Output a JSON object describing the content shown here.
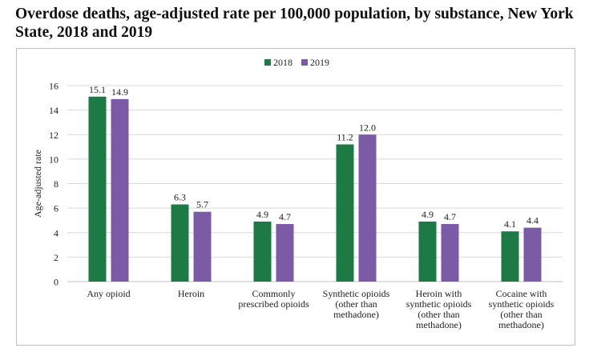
{
  "title": "Overdose deaths, age-adjusted rate per 100,000 population, by substance, New York State, 2018 and 2019",
  "chart_data": {
    "type": "bar",
    "title": "Overdose deaths, age-adjusted rate per 100,000 population, by substance, New York State, 2018 and 2019",
    "xlabel": "",
    "ylabel": "Age-adjusted rate",
    "ylim": [
      0,
      16
    ],
    "yticks": [
      0,
      2,
      4,
      6,
      8,
      10,
      12,
      14,
      16
    ],
    "grid": true,
    "legend_position": "top-center",
    "categories": [
      [
        "Any opioid"
      ],
      [
        "Heroin"
      ],
      [
        "Commonly",
        "prescribed opioids"
      ],
      [
        "Synthetic opioids",
        "(other than",
        "methadone)"
      ],
      [
        "Heroin with",
        "synthetic opioids",
        "(other than",
        "methadone)"
      ],
      [
        "Cocaine with",
        "synthetic opioids",
        "(other than",
        "methadone)"
      ]
    ],
    "series": [
      {
        "name": "2018",
        "color": "#1e7a45",
        "values": [
          15.1,
          6.3,
          4.9,
          11.2,
          4.9,
          4.1
        ],
        "labels": [
          "15.1",
          "6.3",
          "4.9",
          "11.2",
          "4.9",
          "4.1"
        ]
      },
      {
        "name": "2019",
        "color": "#7b5aa6",
        "values": [
          14.9,
          5.7,
          4.7,
          12.0,
          4.7,
          4.4
        ],
        "labels": [
          "14.9",
          "5.7",
          "4.7",
          "12.0",
          "4.7",
          "4.4"
        ]
      }
    ]
  }
}
